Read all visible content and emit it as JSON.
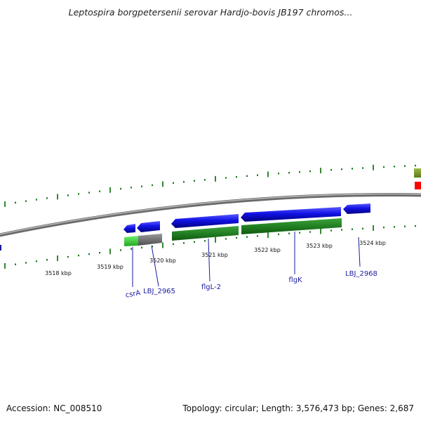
{
  "title": "Leptospira borgpetersenii serovar Hardjo-bovis JB197 chromos...",
  "footer": {
    "accession": "Accession: NC_008510",
    "summary": "Topology: circular; Length: 3,576,473 bp; Genes: 2,687"
  },
  "scale": {
    "labels": [
      "3518 kbp",
      "3519 kbp",
      "3520 kbp",
      "3521 kbp",
      "3522 kbp",
      "3523 kbp",
      "3524 kbp"
    ]
  },
  "genes": [
    {
      "name": "csrA",
      "strand": "reverse"
    },
    {
      "name": "LBJ_2965",
      "strand": "reverse"
    },
    {
      "name": "flgL-2",
      "strand": "reverse"
    },
    {
      "name": "flgK",
      "strand": "reverse"
    },
    {
      "name": "LBJ_2968",
      "strand": "reverse"
    }
  ],
  "colors": {
    "backbone": "#808080",
    "gene_blue": "#1010e0",
    "feature_green": "#2a8a2a",
    "feature_light_green": "#44cc44",
    "feature_gray": "#707070",
    "tick_green": "#1c7a1c",
    "label_blue": "#1a1aa0",
    "edge_olive": "#7f9a2a",
    "edge_red": "#ff0000"
  }
}
